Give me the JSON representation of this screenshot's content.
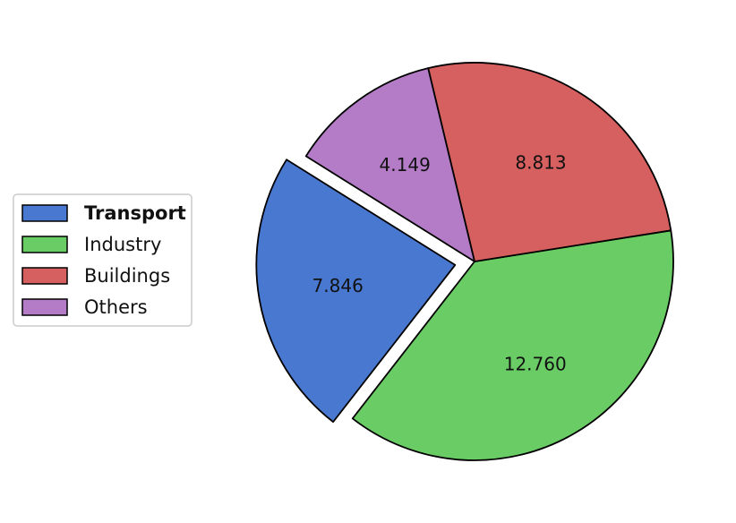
{
  "chart_data": {
    "type": "pie",
    "title": "",
    "slices": [
      {
        "label": "Transport",
        "value": 7.846,
        "value_label": "7.846",
        "color": "#4878d0",
        "exploded": true,
        "bold": true
      },
      {
        "label": "Industry",
        "value": 12.76,
        "value_label": "12.760",
        "color": "#6acc64",
        "exploded": false,
        "bold": false
      },
      {
        "label": "Buildings",
        "value": 8.813,
        "value_label": "8.813",
        "color": "#d65f5f",
        "exploded": false,
        "bold": false
      },
      {
        "label": "Others",
        "value": 4.149,
        "value_label": "4.149",
        "color": "#b47cc7",
        "exploded": false,
        "bold": false
      }
    ],
    "start_angle_deg": 148,
    "direction": "counterclockwise",
    "legend": {
      "placement": "left",
      "entries": [
        "Transport",
        "Industry",
        "Buildings",
        "Others"
      ]
    }
  }
}
